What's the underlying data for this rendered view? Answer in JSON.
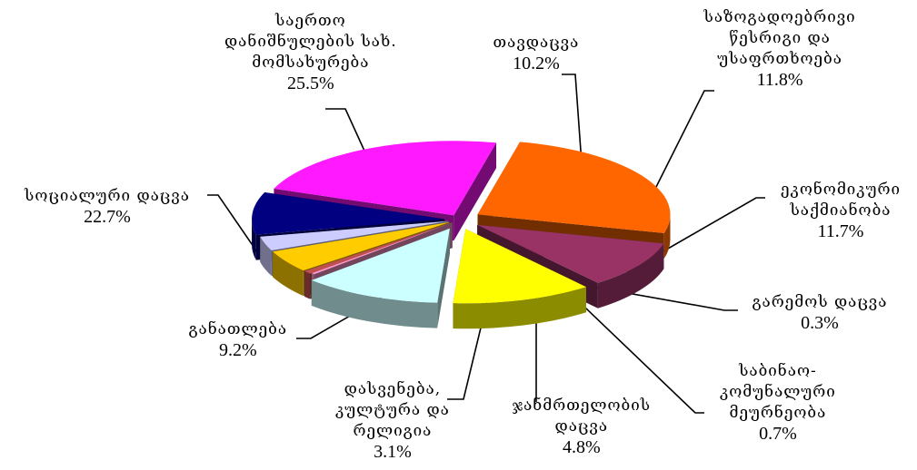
{
  "chart_data": {
    "type": "pie",
    "categories": [
      "სოციალური დაცვა",
      "საერთო დანიშნულების სახ. მომსახურება",
      "თავდაცვა",
      "საზოგადოებრივი წესრიგი და უსაფრთხოება",
      "ეკონომიკური საქმიანობა",
      "გარემოს დაცვა",
      "საბინაო-კომუნალური მეურნეობა",
      "ჯანმრთელობის დაცვა",
      "დასვენება, კულტურა და რელიგია",
      "განათლება"
    ],
    "values": [
      22.7,
      25.5,
      10.2,
      11.8,
      11.7,
      0.3,
      0.7,
      4.8,
      3.1,
      9.2
    ],
    "percent_labels": [
      "22.7%",
      "25.5%",
      "10.2%",
      "11.8%",
      "11.7%",
      "0.3%",
      "0.7%",
      "4.8%",
      "3.1%",
      "9.2%"
    ],
    "label_text": [
      "სოციალური დაცვა",
      "საერთო\nდანიშნულების სახ.\nმომსახურება",
      "თავდაცვა",
      "საზოგადოებრივი\nწესრიგი და\nუსაფრთხოება",
      "ეკონომიკური\nსაქმიანობა",
      "გარემოს დაცვა",
      "საბინაო-\nკომუნალური\nმეურნეობა",
      "ჯანმრთელობის\nდაცვა",
      "დასვენება,\nკულტურა და\nრელიგია",
      "განათლება"
    ],
    "colors": [
      "#ff19ff",
      "#ff6600",
      "#993366",
      "#ffff00",
      "#ccffff",
      "#ff99cc",
      "#c0504d",
      "#ffcc00",
      "#ccccff",
      "#000080"
    ],
    "legend": "none",
    "exploded": true,
    "three_d": true
  }
}
